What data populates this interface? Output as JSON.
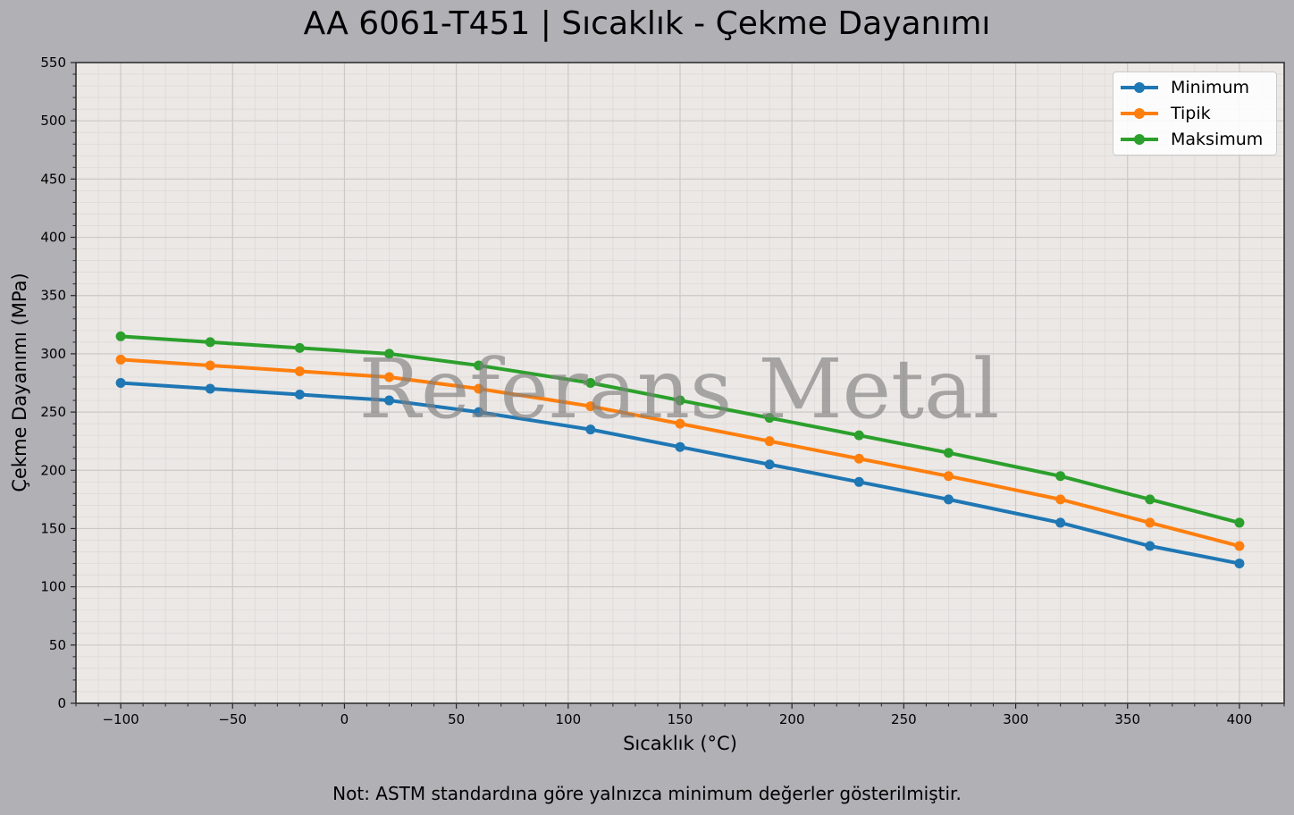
{
  "chart_data": {
    "type": "line",
    "title": "AA 6061-T451 | Sıcaklık - Çekme Dayanımı",
    "xlabel": "Sıcaklık (°C)",
    "ylabel": "Çekme Dayanımı (MPa)",
    "note": "Not: ASTM standardına göre yalnızca minimum değerler gösterilmiştir.",
    "watermark": "Referans Metal",
    "xlim": [
      -120,
      420
    ],
    "ylim": [
      0,
      550
    ],
    "xticks": [
      -100,
      -50,
      0,
      50,
      100,
      150,
      200,
      250,
      300,
      350,
      400
    ],
    "xtick_labels": [
      "−100",
      "−50",
      "0",
      "50",
      "100",
      "150",
      "200",
      "250",
      "300",
      "350",
      "400"
    ],
    "yticks": [
      0,
      50,
      100,
      150,
      200,
      250,
      300,
      350,
      400,
      450,
      500,
      550
    ],
    "grid": true,
    "legend_position": "top-right",
    "x": [
      -100,
      -60,
      -20,
      20,
      60,
      110,
      150,
      190,
      230,
      270,
      320,
      360,
      400
    ],
    "series": [
      {
        "name": "Minimum",
        "color": "#1f77b4",
        "values": [
          275,
          270,
          265,
          260,
          250,
          235,
          220,
          205,
          190,
          175,
          155,
          135,
          120
        ]
      },
      {
        "name": "Tipik",
        "color": "#ff7f0e",
        "values": [
          295,
          290,
          285,
          280,
          270,
          255,
          240,
          225,
          210,
          195,
          175,
          155,
          135
        ]
      },
      {
        "name": "Maksimum",
        "color": "#2ca02c",
        "values": [
          315,
          310,
          305,
          300,
          290,
          275,
          260,
          245,
          230,
          215,
          195,
          175,
          155
        ]
      }
    ]
  }
}
